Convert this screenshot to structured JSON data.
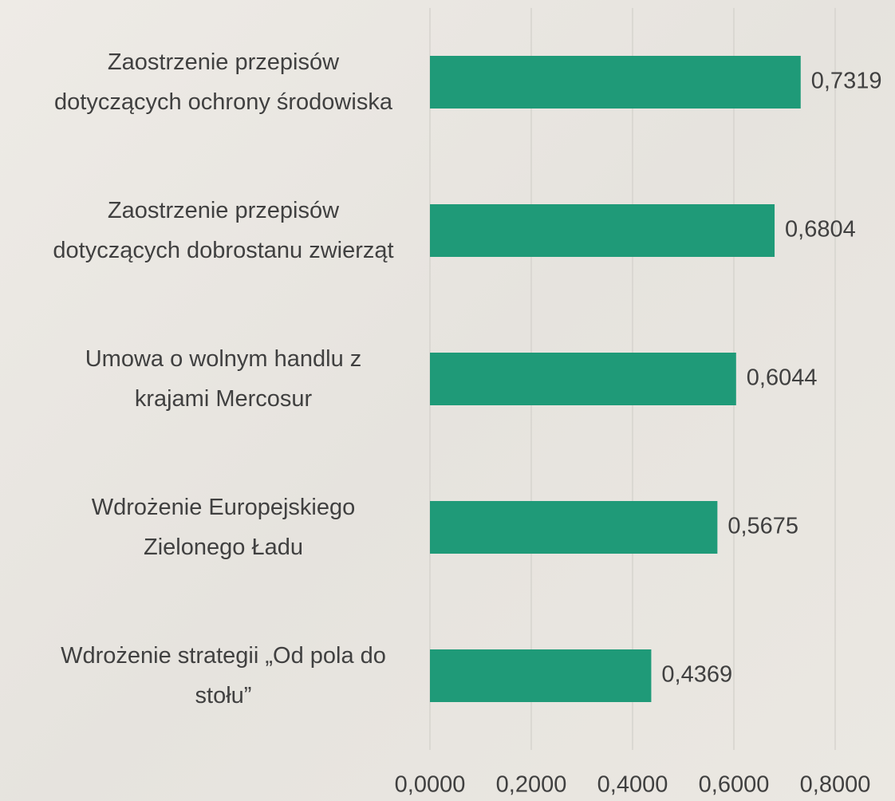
{
  "chart_data": {
    "type": "bar",
    "orientation": "horizontal",
    "categories": [
      "Zaostrzenie przepisów dotyczących ochrony środowiska",
      "Zaostrzenie przepisów dotyczących dobrostanu zwierząt",
      "Umowa o wolnym handlu z krajami Mercosur",
      "Wdrożenie Europejskiego Zielonego Ładu",
      "Wdrożenie strategii „Od pola do stołu”"
    ],
    "values": [
      0.7319,
      0.6804,
      0.6044,
      0.5675,
      0.4369
    ],
    "value_labels": [
      "0,7319",
      "0,6804",
      "0,6044",
      "0,5675",
      "0,4369"
    ],
    "color": "#1f9a78",
    "xlim": [
      0,
      0.8
    ],
    "xticks": [
      {
        "value": 0,
        "label": "0,0000"
      },
      {
        "value": 0.2,
        "label": "0,2000"
      },
      {
        "value": 0.4,
        "label": "0,4000"
      },
      {
        "value": 0.6,
        "label": "0,6000"
      },
      {
        "value": 0.8,
        "label": "0,8000"
      }
    ],
    "grid": true
  }
}
